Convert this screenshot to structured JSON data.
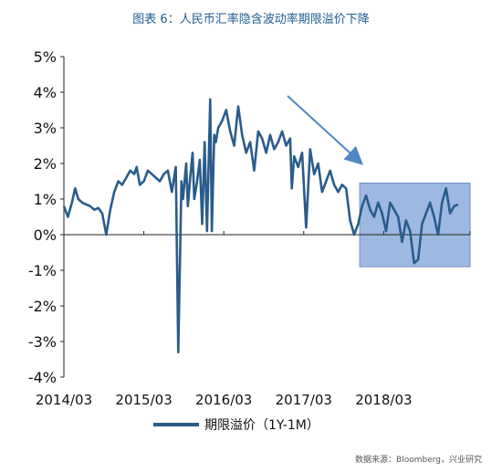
{
  "title": "图表 6：人民币汇率隐含波动率期限溢价下降",
  "source": "数据来源：Bloomberg，兴业研究",
  "colors": {
    "line": "#2a5c8b",
    "highlight_fill": "#9db9e2",
    "highlight_stroke": "#6f8fc6",
    "arrow": "#4f87c5",
    "title": "#1f5b8f"
  },
  "chart_data": {
    "type": "line",
    "title": "图表 6：人民币汇率隐含波动率期限溢价下降",
    "xlabel": "",
    "ylabel": "",
    "ylim": [
      -4,
      5
    ],
    "yticks": [
      5,
      4,
      3,
      2,
      1,
      0,
      -1,
      -2,
      -3,
      -4
    ],
    "ytick_labels": [
      "5%",
      "4%",
      "3%",
      "2%",
      "1%",
      "0%",
      "-1%",
      "-2%",
      "-3%",
      "-4%"
    ],
    "xlim": [
      2014.17,
      2019.25
    ],
    "xticks": [
      2014.17,
      2015.17,
      2016.17,
      2017.17,
      2018.17
    ],
    "xtick_labels": [
      "2014/03",
      "2015/03",
      "2016/03",
      "2017/03",
      "2018/03"
    ],
    "grid": false,
    "legend_position": "bottom-center",
    "series": [
      {
        "name": "期限溢价（1Y-1M）",
        "x": [
          2014.17,
          2014.22,
          2014.27,
          2014.31,
          2014.35,
          2014.4,
          2014.45,
          2014.5,
          2014.55,
          2014.6,
          2014.65,
          2014.7,
          2014.75,
          2014.8,
          2014.85,
          2014.9,
          2014.95,
          2015.0,
          2015.05,
          2015.08,
          2015.12,
          2015.17,
          2015.22,
          2015.27,
          2015.32,
          2015.37,
          2015.42,
          2015.47,
          2015.52,
          2015.57,
          2015.6,
          2015.64,
          2015.66,
          2015.7,
          2015.72,
          2015.75,
          2015.78,
          2015.8,
          2015.83,
          2015.87,
          2015.9,
          2015.93,
          2015.96,
          2016.0,
          2016.02,
          2016.05,
          2016.07,
          2016.1,
          2016.15,
          2016.2,
          2016.25,
          2016.3,
          2016.35,
          2016.4,
          2016.45,
          2016.5,
          2016.55,
          2016.6,
          2016.65,
          2016.7,
          2016.75,
          2016.8,
          2016.85,
          2016.9,
          2016.95,
          2017.0,
          2017.02,
          2017.05,
          2017.1,
          2017.15,
          2017.2,
          2017.25,
          2017.3,
          2017.35,
          2017.4,
          2017.45,
          2017.5,
          2017.55,
          2017.6,
          2017.65,
          2017.7,
          2017.75,
          2017.8,
          2017.85,
          2017.9,
          2017.95,
          2018.0,
          2018.05,
          2018.1,
          2018.15,
          2018.2,
          2018.25,
          2018.3,
          2018.35,
          2018.4,
          2018.45,
          2018.5,
          2018.55,
          2018.6,
          2018.65,
          2018.7,
          2018.75,
          2018.8,
          2018.85,
          2018.9,
          2018.95,
          2019.0,
          2019.05,
          2019.1
        ],
        "values": [
          0.8,
          0.5,
          0.9,
          1.3,
          1.0,
          0.9,
          0.85,
          0.8,
          0.7,
          0.75,
          0.6,
          0.0,
          0.7,
          1.2,
          1.5,
          1.4,
          1.6,
          1.8,
          1.7,
          1.9,
          1.4,
          1.5,
          1.8,
          1.7,
          1.6,
          1.5,
          1.7,
          1.8,
          1.2,
          1.9,
          -3.3,
          1.5,
          1.0,
          2.0,
          0.8,
          1.6,
          2.3,
          1.0,
          1.4,
          2.1,
          0.3,
          2.6,
          0.1,
          3.8,
          0.1,
          2.8,
          2.6,
          3.0,
          3.2,
          3.5,
          2.9,
          2.5,
          3.6,
          2.8,
          2.3,
          2.6,
          1.8,
          2.9,
          2.7,
          2.3,
          2.8,
          2.4,
          2.6,
          2.9,
          2.5,
          2.7,
          1.3,
          2.2,
          1.9,
          2.3,
          0.2,
          2.4,
          1.7,
          2.0,
          1.2,
          1.5,
          1.8,
          1.4,
          1.2,
          1.4,
          1.3,
          0.4,
          0.0,
          0.3,
          0.8,
          1.1,
          0.7,
          0.5,
          0.9,
          0.6,
          0.1,
          0.9,
          0.7,
          0.5,
          -0.2,
          0.4,
          0.1,
          -0.8,
          -0.7,
          0.3,
          0.6,
          0.9,
          0.5,
          0.0,
          0.9,
          1.3,
          0.6,
          0.8,
          0.85
        ]
      }
    ],
    "annotations": [
      {
        "kind": "highlight_box",
        "x_from": 2017.87,
        "x_to": 2019.25,
        "y_from": -0.9,
        "y_to": 1.45
      },
      {
        "kind": "arrow",
        "direction": "down-right"
      }
    ]
  }
}
